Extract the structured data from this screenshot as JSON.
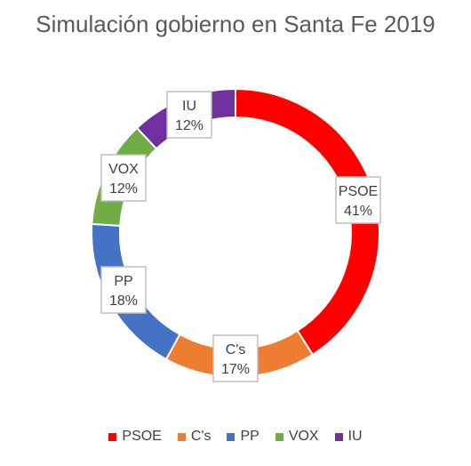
{
  "chart_data": {
    "type": "pie",
    "subtype": "doughnut",
    "title": "Simulación gobierno en Santa Fe 2019",
    "legend_position": "bottom",
    "slices": [
      {
        "name": "PSOE",
        "percent_label": "41%",
        "value": 41,
        "color": "#FF0000"
      },
      {
        "name": "C's",
        "percent_label": "17%",
        "value": 17,
        "color": "#ED7D31"
      },
      {
        "name": "PP",
        "percent_label": "18%",
        "value": 18,
        "color": "#4472C4"
      },
      {
        "name": "VOX",
        "percent_label": "12%",
        "value": 12,
        "color": "#70AD47"
      },
      {
        "name": "IU",
        "percent_label": "12%",
        "value": 12,
        "color": "#7030A0"
      }
    ]
  }
}
